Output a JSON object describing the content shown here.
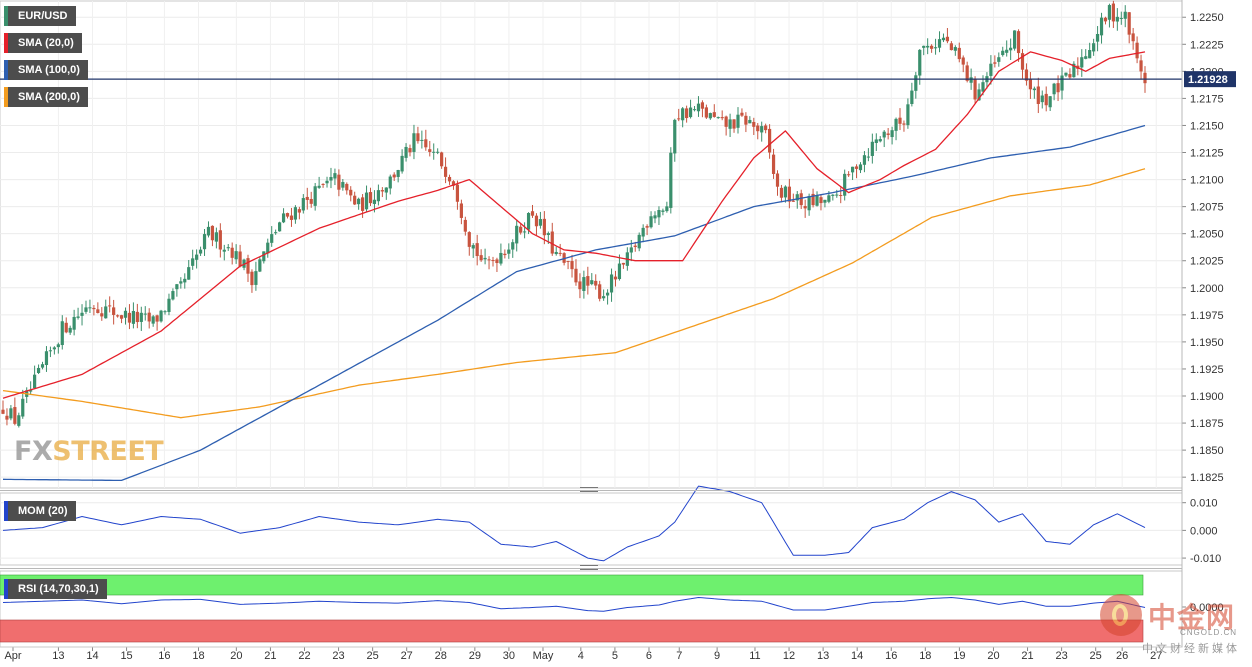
{
  "legend": {
    "pair": "EUR/USD",
    "sma20": "SMA (20,0)",
    "sma100": "SMA (100,0)",
    "sma200": "SMA (200,0)",
    "mom": "MOM (20)",
    "rsi": "RSI (14,70,30,1)"
  },
  "price": {
    "current": "1.21928",
    "current_value": 1.21928
  },
  "colors": {
    "bull": "#3a8f6c",
    "bear": "#c8543f",
    "sma20": "#e5202a",
    "sma100": "#2e5fb0",
    "sma200": "#f39c1f",
    "indicator": "#2244cc",
    "rsi_over": "#6ef06e",
    "rsi_under": "#f06e6e"
  },
  "watermarks": {
    "fxstreet_a": "FX",
    "fxstreet_b": "STREET",
    "cngold_zh": "中金网",
    "cngold_en": "CNGOLD.CN",
    "cngold_sub": "中文财经新媒体"
  },
  "chart_data": [
    {
      "type": "candlestick",
      "title": "EUR/USD",
      "ylim": [
        1.1815,
        1.2265
      ],
      "y_ticks": [
        "1.2250",
        "1.2225",
        "1.2200",
        "1.2175",
        "1.2150",
        "1.2125",
        "1.2100",
        "1.2075",
        "1.2050",
        "1.2025",
        "1.2000",
        "1.1975",
        "1.1950",
        "1.1925",
        "1.1900",
        "1.1875",
        "1.1850",
        "1.1825"
      ],
      "x_ticks": [
        "Apr",
        "13",
        "14",
        "15",
        "16",
        "18",
        "20",
        "21",
        "22",
        "23",
        "25",
        "27",
        "28",
        "29",
        "30",
        "May",
        "4",
        "5",
        "6",
        "7",
        "9",
        "11",
        "12",
        "13",
        "14",
        "16",
        "18",
        "19",
        "20",
        "21",
        "23",
        "25",
        "26",
        "27"
      ],
      "grid": true,
      "close_anchors": [
        [
          0,
          1.189
        ],
        [
          3,
          1.1878
        ],
        [
          8,
          1.1912
        ],
        [
          15,
          1.1962
        ],
        [
          22,
          1.1985
        ],
        [
          30,
          1.1975
        ],
        [
          38,
          1.1968
        ],
        [
          45,
          1.2
        ],
        [
          52,
          1.205
        ],
        [
          58,
          1.2035
        ],
        [
          63,
          1.201
        ],
        [
          70,
          1.206
        ],
        [
          78,
          1.2085
        ],
        [
          84,
          1.21
        ],
        [
          90,
          1.2075
        ],
        [
          98,
          1.21
        ],
        [
          104,
          1.2135
        ],
        [
          110,
          1.212
        ],
        [
          114,
          1.21
        ],
        [
          118,
          1.2045
        ],
        [
          122,
          1.202
        ],
        [
          128,
          1.204
        ],
        [
          134,
          1.207
        ],
        [
          140,
          1.203
        ],
        [
          146,
          1.2005
        ],
        [
          152,
          1.1995
        ],
        [
          158,
          1.2025
        ],
        [
          164,
          1.207
        ],
        [
          168,
          1.2075
        ],
        [
          170,
          1.216
        ],
        [
          176,
          1.2165
        ],
        [
          182,
          1.215
        ],
        [
          188,
          1.2155
        ],
        [
          193,
          1.214
        ],
        [
          196,
          1.209
        ],
        [
          202,
          1.2078
        ],
        [
          210,
          1.208
        ],
        [
          216,
          1.2115
        ],
        [
          222,
          1.214
        ],
        [
          228,
          1.2155
        ],
        [
          232,
          1.222
        ],
        [
          238,
          1.223
        ],
        [
          242,
          1.221
        ],
        [
          246,
          1.218
        ],
        [
          250,
          1.22
        ],
        [
          256,
          1.223
        ],
        [
          260,
          1.218
        ],
        [
          264,
          1.2175
        ],
        [
          270,
          1.2195
        ],
        [
          276,
          1.223
        ],
        [
          280,
          1.2255
        ],
        [
          284,
          1.225
        ],
        [
          287,
          1.221
        ],
        [
          289,
          1.2193
        ]
      ],
      "sma20_anchors": [
        [
          0,
          1.1898
        ],
        [
          20,
          1.192
        ],
        [
          40,
          1.196
        ],
        [
          60,
          1.202
        ],
        [
          80,
          1.2055
        ],
        [
          100,
          1.208
        ],
        [
          110,
          1.209
        ],
        [
          118,
          1.21
        ],
        [
          126,
          1.2075
        ],
        [
          134,
          1.205
        ],
        [
          142,
          1.2035
        ],
        [
          150,
          1.2032
        ],
        [
          160,
          1.2025
        ],
        [
          172,
          1.2025
        ],
        [
          182,
          1.208
        ],
        [
          190,
          1.212
        ],
        [
          198,
          1.2145
        ],
        [
          206,
          1.211
        ],
        [
          214,
          1.2088
        ],
        [
          222,
          1.21
        ],
        [
          228,
          1.2113
        ],
        [
          236,
          1.2128
        ],
        [
          244,
          1.216
        ],
        [
          252,
          1.22
        ],
        [
          260,
          1.2218
        ],
        [
          268,
          1.221
        ],
        [
          274,
          1.22
        ],
        [
          280,
          1.2212
        ],
        [
          289,
          1.2218
        ]
      ],
      "sma100_anchors": [
        [
          0,
          1.1823
        ],
        [
          30,
          1.1822
        ],
        [
          50,
          1.185
        ],
        [
          80,
          1.191
        ],
        [
          110,
          1.197
        ],
        [
          130,
          1.2015
        ],
        [
          150,
          1.2035
        ],
        [
          170,
          1.2048
        ],
        [
          190,
          1.2075
        ],
        [
          210,
          1.2088
        ],
        [
          230,
          1.2103
        ],
        [
          250,
          1.212
        ],
        [
          270,
          1.213
        ],
        [
          289,
          1.215
        ]
      ],
      "sma200_anchors": [
        [
          0,
          1.1905
        ],
        [
          20,
          1.1895
        ],
        [
          45,
          1.188
        ],
        [
          65,
          1.189
        ],
        [
          90,
          1.191
        ],
        [
          110,
          1.192
        ],
        [
          130,
          1.1931
        ],
        [
          155,
          1.194
        ],
        [
          175,
          1.1965
        ],
        [
          195,
          1.199
        ],
        [
          215,
          1.2023
        ],
        [
          235,
          1.2065
        ],
        [
          255,
          1.2085
        ],
        [
          275,
          1.2095
        ],
        [
          289,
          1.211
        ]
      ]
    },
    {
      "type": "line",
      "title": "MOM (20)",
      "ylim": [
        -0.0125,
        0.0135
      ],
      "y_ticks": [
        "0.010",
        "0.000",
        "-0.010"
      ],
      "anchors": [
        [
          0,
          0.0
        ],
        [
          10,
          0.001
        ],
        [
          20,
          0.005
        ],
        [
          30,
          0.002
        ],
        [
          40,
          0.005
        ],
        [
          50,
          0.004
        ],
        [
          60,
          -0.001
        ],
        [
          70,
          0.001
        ],
        [
          80,
          0.005
        ],
        [
          90,
          0.003
        ],
        [
          100,
          0.002
        ],
        [
          110,
          0.004
        ],
        [
          118,
          0.003
        ],
        [
          126,
          -0.005
        ],
        [
          134,
          -0.006
        ],
        [
          140,
          -0.004
        ],
        [
          148,
          -0.01
        ],
        [
          152,
          -0.011
        ],
        [
          158,
          -0.006
        ],
        [
          166,
          -0.002
        ],
        [
          170,
          0.003
        ],
        [
          176,
          0.016
        ],
        [
          184,
          0.014
        ],
        [
          192,
          0.01
        ],
        [
          200,
          -0.009
        ],
        [
          208,
          -0.009
        ],
        [
          214,
          -0.008
        ],
        [
          220,
          0.001
        ],
        [
          228,
          0.004
        ],
        [
          234,
          0.01
        ],
        [
          240,
          0.014
        ],
        [
          246,
          0.011
        ],
        [
          252,
          0.003
        ],
        [
          258,
          0.006
        ],
        [
          264,
          -0.004
        ],
        [
          270,
          -0.005
        ],
        [
          276,
          0.002
        ],
        [
          282,
          0.006
        ],
        [
          289,
          0.001
        ]
      ]
    },
    {
      "type": "line",
      "title": "RSI (14,70,30,1)",
      "y_ticks": [
        "0.0000"
      ],
      "anchors": [
        [
          0,
          58
        ],
        [
          10,
          60
        ],
        [
          20,
          62
        ],
        [
          30,
          56
        ],
        [
          40,
          62
        ],
        [
          50,
          63
        ],
        [
          60,
          55
        ],
        [
          70,
          57
        ],
        [
          80,
          60
        ],
        [
          90,
          58
        ],
        [
          100,
          57
        ],
        [
          110,
          61
        ],
        [
          118,
          58
        ],
        [
          126,
          48
        ],
        [
          134,
          50
        ],
        [
          140,
          52
        ],
        [
          148,
          45
        ],
        [
          152,
          44
        ],
        [
          158,
          50
        ],
        [
          166,
          54
        ],
        [
          170,
          60
        ],
        [
          176,
          66
        ],
        [
          184,
          62
        ],
        [
          192,
          60
        ],
        [
          200,
          46
        ],
        [
          208,
          46
        ],
        [
          214,
          52
        ],
        [
          220,
          58
        ],
        [
          228,
          60
        ],
        [
          234,
          64
        ],
        [
          240,
          66
        ],
        [
          246,
          62
        ],
        [
          252,
          55
        ],
        [
          258,
          60
        ],
        [
          264,
          52
        ],
        [
          270,
          52
        ],
        [
          276,
          57
        ],
        [
          282,
          60
        ],
        [
          289,
          50
        ]
      ]
    }
  ]
}
